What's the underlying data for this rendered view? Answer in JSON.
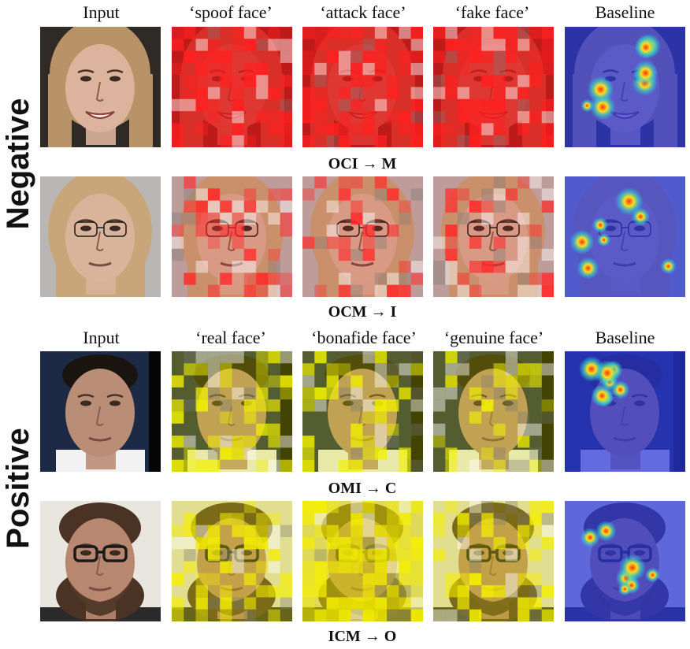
{
  "side_labels": {
    "negative": "Negative",
    "positive": "Positive"
  },
  "negative_headers": [
    "Input",
    "‘spoof face’",
    "‘attack face’",
    "‘fake face’",
    "Baseline"
  ],
  "positive_headers": [
    "Input",
    "‘real face’",
    "‘bonafide face’",
    "‘genuine face’",
    "Baseline"
  ],
  "captions": [
    "OCI → M",
    "OCM → I",
    "OMI → C",
    "ICM → O"
  ],
  "rows": [
    {
      "subject": "woman-blonde",
      "bg": "#2f2a26",
      "skin": "#dcb39c",
      "hair": "#b89368",
      "tint": "#e01818",
      "tint_opacity": 0.55,
      "patch_color": "#ff2020",
      "patch_density": 0.22
    },
    {
      "subject": "woman-headscarf",
      "bg": "#b9b6b3",
      "skin": "#d9b49a",
      "hair": "#c9a67a",
      "tint": "#d02828",
      "tint_opacity": 0.18,
      "patch_color": "#ff2a2a",
      "patch_density": 0.28
    },
    {
      "subject": "man-short-hair",
      "bg": "#1d2a45",
      "skin": "#b98d76",
      "hair": "#1a1410",
      "tint": "#d4d400",
      "tint_opacity": 0.3,
      "patch_color": "#f2f200",
      "patch_density": 0.3
    },
    {
      "subject": "man-beard-glasses",
      "bg": "#e9e5df",
      "skin": "#b88770",
      "hair": "#4a3324",
      "tint": "#d8d000",
      "tint_opacity": 0.35,
      "patch_color": "#f5ef00",
      "patch_density": 0.34
    }
  ],
  "colors": {
    "baseline_bg": "#2a38d8",
    "hot": "#ff3010",
    "warm": "#f5e020",
    "mid": "#30d0d0"
  }
}
